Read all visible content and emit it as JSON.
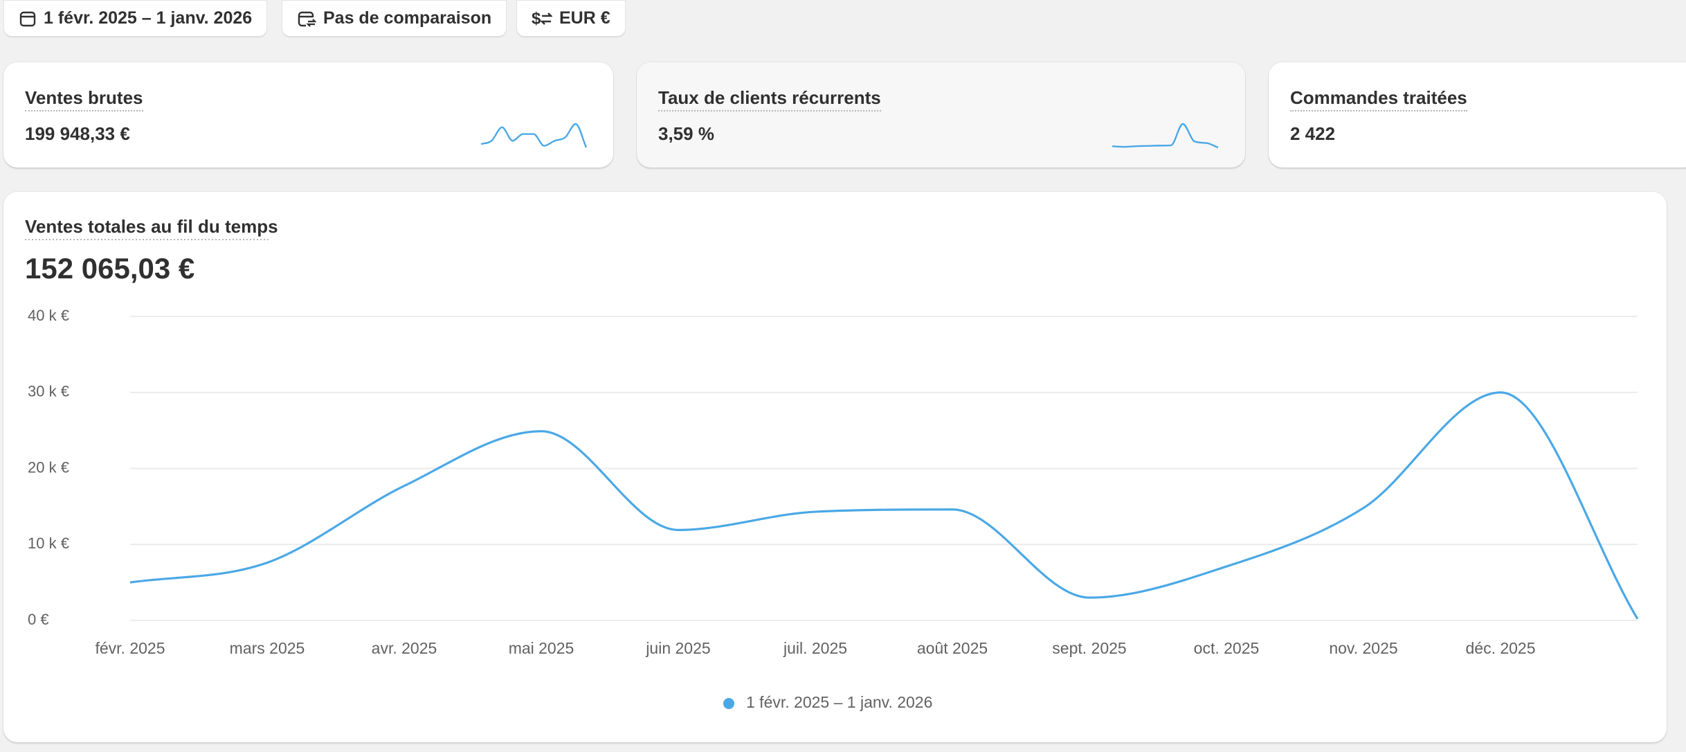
{
  "toolbar": [
    "1 févr. 2025 – 1 janv. 2026",
    "Pas de comparaison",
    "EUR €"
  ],
  "cards": [
    {
      "title": "Ventes brutes",
      "value": "199 948,33 €",
      "sparkline": [
        1,
        2,
        6,
        2,
        4,
        4,
        0.5,
        2,
        3,
        7,
        0
      ]
    },
    {
      "title": "Taux de clients récurrents",
      "value": "3,59 %",
      "sparkline": [
        1,
        0.8,
        1,
        1.1,
        1.2,
        1.3,
        8,
        2.5,
        2,
        0.6
      ]
    },
    {
      "title": "Commandes traitées",
      "value": "2 422"
    }
  ],
  "chart_data": {
    "type": "line",
    "title": "Ventes totales au fil du temps",
    "total": "152 065,03 €",
    "categories": [
      "févr. 2025",
      "mars 2025",
      "avr. 2025",
      "mai 2025",
      "juin 2025",
      "juil. 2025",
      "août 2025",
      "sept. 2025",
      "oct. 2025",
      "nov. 2025",
      "déc. 2025",
      null
    ],
    "series": [
      {
        "name": "1 févr. 2025 – 1 janv. 2026",
        "color": "#4aa8e6",
        "values": [
          5,
          7.6,
          17.7,
          24.9,
          11.9,
          14.3,
          14.6,
          3,
          7.1,
          14.8,
          30,
          0.2
        ]
      }
    ],
    "ylim": [
      0,
      40
    ],
    "yticks": [
      {
        "value": 0,
        "label": "0 €"
      },
      {
        "value": 10,
        "label": "10 k €"
      },
      {
        "value": 20,
        "label": "20 k €"
      },
      {
        "value": 30,
        "label": "30 k €"
      },
      {
        "value": 40,
        "label": "40 k €"
      }
    ],
    "grid": true,
    "legend": "bottom"
  }
}
